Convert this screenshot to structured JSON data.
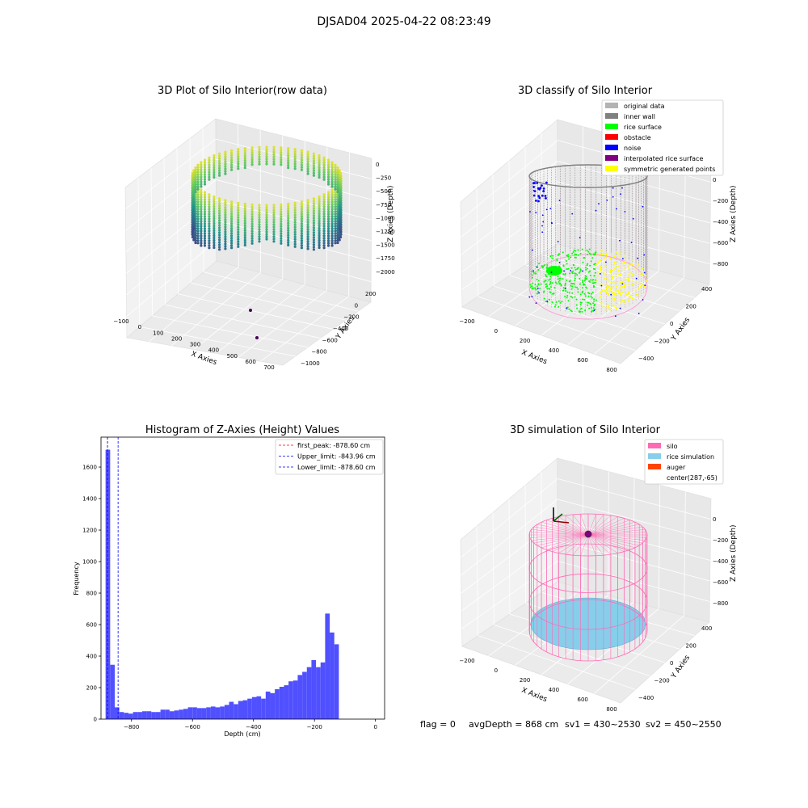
{
  "figure": {
    "suptitle": "DJSAD04 2025-04-22 08:23:49",
    "footer": {
      "flag": "flag = 0",
      "avg": "avgDepth = 868 cm",
      "sv1": "sv1 = 430~2530",
      "sv2": "sv2 = 450~2550"
    }
  },
  "colors": {
    "bar": "#5050ff",
    "first_peak": "#ff0000",
    "upper_limit": "#0000ff",
    "lower_limit": "#0000ff",
    "original": "#b3b3b3",
    "inner_wall": "#808080",
    "rice": "#00ff00",
    "obstacle": "#ff0000",
    "noise": "#0000ff",
    "interp": "#800080",
    "sym": "#ffff00",
    "silo": "#ff69b4",
    "rice_sim": "#87ceeb",
    "auger": "#ff4500"
  },
  "chart_data": [
    {
      "type": "scatter",
      "title": "3D Plot of Silo Interior(row data)",
      "xlabel": "X Axies",
      "ylabel": "Y Axies",
      "zlabel": "Z Axies (Depth)",
      "xticks": [
        "−100",
        "0",
        "100",
        "200",
        "300",
        "400",
        "500",
        "600",
        "700"
      ],
      "yticks": [
        "−1000",
        "−800",
        "−600",
        "−400",
        "−200",
        "0",
        "200"
      ],
      "zticks": [
        "0",
        "−250",
        "−500",
        "−750",
        "−1000",
        "−1250",
        "−1500",
        "−1750",
        "−2000"
      ],
      "colormap": "viridis",
      "outliers": [
        {
          "x": 420,
          "y": -430,
          "z": -1950
        },
        {
          "x": 600,
          "y": -700,
          "z": -2000
        }
      ]
    },
    {
      "type": "scatter",
      "title": "3D classify of Silo Interior",
      "xlabel": "X Axies",
      "ylabel": "Y Axies",
      "zlabel": "Z Axies (Depth)",
      "xticks": [
        "−200",
        "0",
        "200",
        "400",
        "600",
        "800"
      ],
      "yticks": [
        "−400",
        "−200",
        "0",
        "200",
        "400"
      ],
      "zticks": [
        "0",
        "−200",
        "−400",
        "−600",
        "−800"
      ],
      "legend": [
        "original data",
        "inner wall",
        "rice surface",
        "obstacle",
        "noise",
        "interpolated rice surface",
        "symmetric generated points"
      ],
      "legend_loc": "upper right"
    },
    {
      "type": "bar",
      "title": "Histogram of Z-Axies (Height) Values",
      "xlabel": "Depth (cm)",
      "ylabel": "Frequency",
      "xlim": [
        -900,
        30
      ],
      "ylim": [
        0,
        1790
      ],
      "bin_width": 15,
      "bins_start": -885,
      "xticks": [
        -800,
        -600,
        -400,
        -200,
        0
      ],
      "xtick_labels": [
        "−800",
        "−600",
        "−400",
        "−200",
        "0"
      ],
      "yticks": [
        0,
        200,
        400,
        600,
        800,
        1000,
        1200,
        1400,
        1600
      ],
      "values": [
        1710,
        345,
        75,
        45,
        40,
        35,
        45,
        45,
        50,
        50,
        45,
        45,
        60,
        60,
        50,
        55,
        60,
        65,
        75,
        75,
        70,
        70,
        75,
        80,
        75,
        80,
        90,
        110,
        95,
        115,
        120,
        130,
        140,
        145,
        130,
        175,
        165,
        190,
        205,
        215,
        240,
        245,
        280,
        300,
        330,
        375,
        330,
        360,
        670,
        550,
        475
      ],
      "vlines": [
        {
          "label": "first_peak: -878.60 cm",
          "x": -878.6,
          "color": "#ff0000"
        },
        {
          "label": "Upper_limit: -843.96 cm",
          "x": -843.96,
          "color": "#0000ff"
        },
        {
          "label": "Lower_limit: -878.60 cm",
          "x": -878.6,
          "color": "#0000ff"
        }
      ],
      "legend_loc": "upper right",
      "grid": false
    },
    {
      "type": "scatter",
      "title": "3D simulation of Silo Interior",
      "xlabel": "X Axies",
      "ylabel": "Y Axies",
      "zlabel": "Z Axies (Depth)",
      "xticks": [
        "−200",
        "0",
        "200",
        "400",
        "600",
        "800"
      ],
      "yticks": [
        "−400",
        "−200",
        "0",
        "200",
        "400"
      ],
      "zticks": [
        "0",
        "−200",
        "−400",
        "−600",
        "−800"
      ],
      "legend": [
        "silo",
        "rice simulation",
        "auger",
        "center(287,-65)"
      ],
      "legend_loc": "upper right"
    }
  ]
}
